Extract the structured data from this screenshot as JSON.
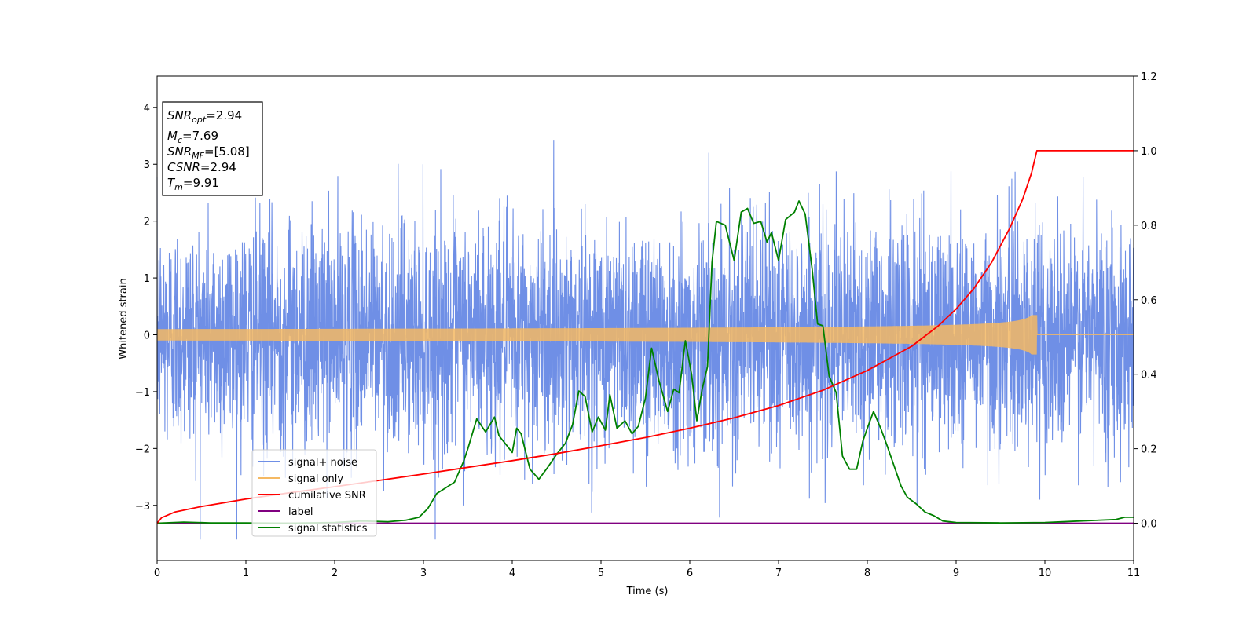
{
  "chart_data": {
    "type": "line",
    "xlabel": "Time (s)",
    "ylabel_left": "Whitened strain",
    "ylabel_right": "",
    "xlim": [
      0,
      11
    ],
    "ylim_left": [
      -3.97,
      4.55
    ],
    "ylim_right": [
      -0.1,
      1.2
    ],
    "x_ticks": [
      0,
      1,
      2,
      3,
      4,
      5,
      6,
      7,
      8,
      9,
      10,
      11
    ],
    "y_left_ticks": [
      -3,
      -2,
      -1,
      0,
      1,
      2,
      3,
      4
    ],
    "y_right_ticks": [
      0.0,
      0.2,
      0.4,
      0.6,
      0.8,
      1.0,
      1.2
    ],
    "grid": false,
    "legend_position": "lower-left",
    "info_box": {
      "snr_opt": {
        "main": "SNR",
        "sub": "opt",
        "value": "=2.94"
      },
      "mc": {
        "main": "M",
        "sub": "c",
        "value": "=7.69"
      },
      "snr_mf": {
        "main": "SNR",
        "sub": "MF",
        "value": "=[5.08]"
      },
      "csnr": {
        "main": "CSNR",
        "sub": "",
        "value": "=2.94"
      },
      "tm": {
        "main": "T",
        "sub": "m",
        "value": "=9.91"
      }
    },
    "series": [
      {
        "name": "signal+ noise",
        "axis": "left",
        "color": "#6f8fe6",
        "kind": "noise",
        "std": 1.0,
        "ylim_observed": [
          -3.6,
          3.6
        ],
        "duration": 11
      },
      {
        "name": "signal only",
        "axis": "left",
        "color": "#f5b963",
        "kind": "chirp",
        "merger_time": 9.91,
        "peak_amplitude": 0.38
      },
      {
        "name": "cumilative SNR",
        "axis": "right",
        "color": "#ff0000",
        "x": [
          0,
          0.05,
          0.2,
          0.5,
          1,
          1.5,
          2,
          2.5,
          3,
          3.5,
          4,
          4.5,
          5,
          5.5,
          6,
          6.5,
          7,
          7.5,
          8,
          8.5,
          8.8,
          9,
          9.2,
          9.4,
          9.6,
          9.75,
          9.85,
          9.91,
          11
        ],
        "y": [
          0.0,
          0.015,
          0.03,
          0.045,
          0.065,
          0.082,
          0.098,
          0.115,
          0.132,
          0.15,
          0.168,
          0.187,
          0.208,
          0.23,
          0.255,
          0.283,
          0.316,
          0.357,
          0.41,
          0.475,
          0.53,
          0.575,
          0.63,
          0.7,
          0.79,
          0.87,
          0.94,
          1.0,
          1.0
        ]
      },
      {
        "name": "label",
        "axis": "right",
        "color": "#800080",
        "x": [
          0,
          11
        ],
        "y": [
          0.0,
          0.0
        ]
      },
      {
        "name": "signal statistics",
        "axis": "right",
        "color": "#008000",
        "x": [
          0,
          0.3,
          0.6,
          1,
          1.5,
          2,
          2.3,
          2.6,
          2.8,
          2.95,
          3.05,
          3.15,
          3.25,
          3.35,
          3.45,
          3.5,
          3.6,
          3.7,
          3.8,
          3.85,
          3.95,
          4.0,
          4.05,
          4.1,
          4.2,
          4.3,
          4.4,
          4.5,
          4.6,
          4.68,
          4.75,
          4.82,
          4.9,
          4.97,
          5.05,
          5.1,
          5.18,
          5.27,
          5.35,
          5.42,
          5.5,
          5.57,
          5.65,
          5.75,
          5.82,
          5.88,
          5.95,
          6.02,
          6.08,
          6.14,
          6.2,
          6.25,
          6.3,
          6.4,
          6.5,
          6.58,
          6.65,
          6.72,
          6.8,
          6.87,
          6.92,
          7.0,
          7.08,
          7.18,
          7.23,
          7.3,
          7.38,
          7.44,
          7.5,
          7.57,
          7.65,
          7.72,
          7.8,
          7.88,
          7.95,
          8.0,
          8.07,
          8.15,
          8.22,
          8.3,
          8.38,
          8.45,
          8.55,
          8.65,
          8.75,
          8.85,
          9.0,
          9.5,
          10.0,
          10.4,
          10.8,
          10.9,
          11.0
        ],
        "y": [
          0.0,
          0.003,
          0.001,
          0.001,
          0.0,
          0.002,
          0.006,
          0.004,
          0.008,
          0.016,
          0.04,
          0.08,
          0.095,
          0.11,
          0.165,
          0.2,
          0.28,
          0.245,
          0.285,
          0.235,
          0.205,
          0.19,
          0.255,
          0.24,
          0.145,
          0.118,
          0.15,
          0.185,
          0.215,
          0.265,
          0.355,
          0.34,
          0.245,
          0.285,
          0.25,
          0.345,
          0.255,
          0.275,
          0.24,
          0.26,
          0.335,
          0.47,
          0.385,
          0.3,
          0.36,
          0.35,
          0.49,
          0.4,
          0.275,
          0.36,
          0.42,
          0.7,
          0.81,
          0.8,
          0.705,
          0.835,
          0.845,
          0.805,
          0.81,
          0.755,
          0.78,
          0.705,
          0.815,
          0.835,
          0.865,
          0.83,
          0.68,
          0.535,
          0.53,
          0.395,
          0.35,
          0.18,
          0.145,
          0.145,
          0.22,
          0.255,
          0.3,
          0.255,
          0.21,
          0.155,
          0.1,
          0.07,
          0.052,
          0.03,
          0.02,
          0.006,
          0.002,
          0.001,
          0.002,
          0.006,
          0.01,
          0.016,
          0.016
        ]
      }
    ]
  }
}
